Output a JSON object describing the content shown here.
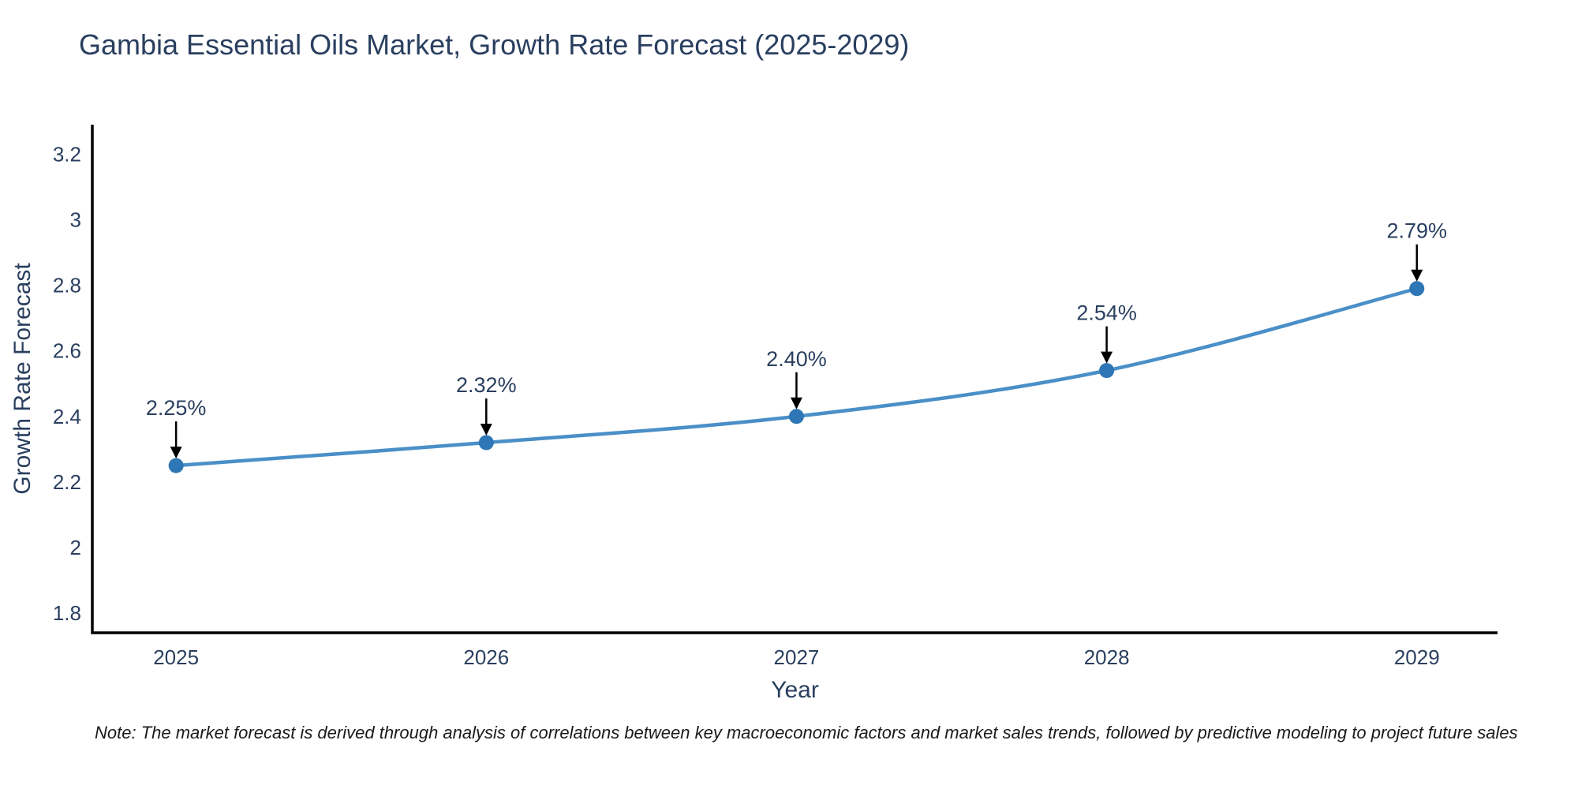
{
  "chart": {
    "note": "Note: The market forecast is derived through analysis of correlations between key macroeconomic factors and market sales trends, followed by predictive modeling to project future sales"
  },
  "chart_data": {
    "type": "line",
    "title": "Gambia Essential Oils Market, Growth Rate Forecast (2025-2029)",
    "xlabel": "Year",
    "ylabel": "Growth Rate Forecast",
    "x": [
      2025,
      2026,
      2027,
      2028,
      2029
    ],
    "series": [
      {
        "name": "Growth Rate Forecast",
        "values": [
          2.25,
          2.32,
          2.4,
          2.54,
          2.79
        ]
      }
    ],
    "point_labels": [
      "2.25%",
      "2.32%",
      "2.40%",
      "2.54%",
      "2.79%"
    ],
    "xticks": {
      "values": [
        2025,
        2026,
        2027,
        2028,
        2029
      ],
      "labels": [
        "2025",
        "2026",
        "2027",
        "2028",
        "2029"
      ]
    },
    "yticks": {
      "values": [
        1.8,
        2,
        2.2,
        2.4,
        2.6,
        2.8,
        3,
        3.2
      ],
      "labels": [
        "1.8",
        "2",
        "2.2",
        "2.4",
        "2.6",
        "2.8",
        "3",
        "3.2"
      ]
    },
    "xlim": [
      2024.73,
      2029.26
    ],
    "ylim": [
      1.74,
      3.29
    ],
    "grid": false,
    "legend": "none",
    "line_shape": "spline",
    "colors": {
      "line": "#4a8fc7",
      "marker": "#2e76b5",
      "axis": "#000000",
      "tick_text": "#2a3f5f",
      "annotation_text": "#2a3f5f",
      "arrow": "#000000",
      "note_text": "#1a1a1a",
      "background": "#ffffff"
    }
  }
}
